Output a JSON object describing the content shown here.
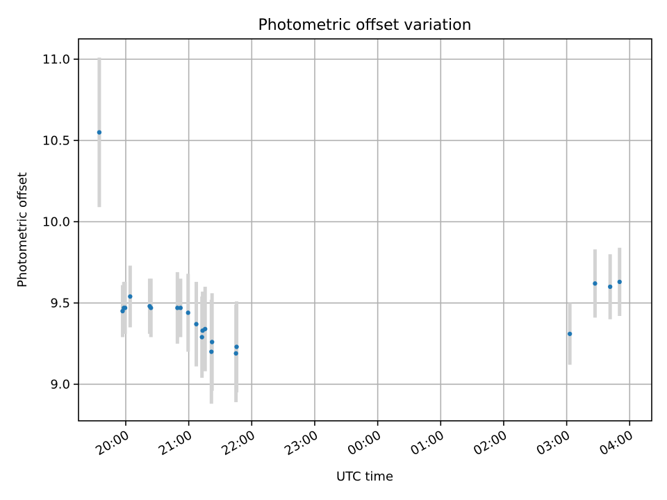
{
  "chart_data": {
    "type": "scatter",
    "title": "Photometric offset variation",
    "xlabel": "UTC time",
    "ylabel": "Photometric offset",
    "x_unit": "hours (UTC, continuing past midnight)",
    "xlim": [
      19.25,
      28.35
    ],
    "ylim": [
      8.775,
      11.125
    ],
    "x_ticks": [
      {
        "value": 20,
        "label": "20:00"
      },
      {
        "value": 21,
        "label": "21:00"
      },
      {
        "value": 22,
        "label": "22:00"
      },
      {
        "value": 23,
        "label": "23:00"
      },
      {
        "value": 24,
        "label": "00:00"
      },
      {
        "value": 25,
        "label": "01:00"
      },
      {
        "value": 26,
        "label": "02:00"
      },
      {
        "value": 27,
        "label": "03:00"
      },
      {
        "value": 28,
        "label": "04:00"
      }
    ],
    "y_ticks": [
      {
        "value": 9.0,
        "label": "9.0"
      },
      {
        "value": 9.5,
        "label": "9.5"
      },
      {
        "value": 10.0,
        "label": "10.0"
      },
      {
        "value": 10.5,
        "label": "10.5"
      },
      {
        "value": 11.0,
        "label": "11.0"
      }
    ],
    "grid": true,
    "colors": {
      "points": "#1f77b4",
      "errorbars": "#d3d3d3"
    },
    "points": [
      {
        "x": 19.58,
        "y": 10.55,
        "err": 0.46
      },
      {
        "x": 19.95,
        "y": 9.45,
        "err": 0.16
      },
      {
        "x": 19.97,
        "y": 9.47,
        "err": 0.16
      },
      {
        "x": 19.99,
        "y": 9.47,
        "err": 0.16
      },
      {
        "x": 20.07,
        "y": 9.54,
        "err": 0.19
      },
      {
        "x": 20.38,
        "y": 9.48,
        "err": 0.17
      },
      {
        "x": 20.4,
        "y": 9.47,
        "err": 0.18
      },
      {
        "x": 20.82,
        "y": 9.47,
        "err": 0.22
      },
      {
        "x": 20.87,
        "y": 9.47,
        "err": 0.18
      },
      {
        "x": 20.99,
        "y": 9.44,
        "err": 0.24
      },
      {
        "x": 21.12,
        "y": 9.37,
        "err": 0.26
      },
      {
        "x": 21.21,
        "y": 9.29,
        "err": 0.25
      },
      {
        "x": 21.22,
        "y": 9.33,
        "err": 0.24
      },
      {
        "x": 21.26,
        "y": 9.34,
        "err": 0.26
      },
      {
        "x": 21.36,
        "y": 9.2,
        "err": 0.32
      },
      {
        "x": 21.37,
        "y": 9.26,
        "err": 0.3
      },
      {
        "x": 21.75,
        "y": 9.19,
        "err": 0.3
      },
      {
        "x": 21.76,
        "y": 9.23,
        "err": 0.28
      },
      {
        "x": 27.05,
        "y": 9.31,
        "err": 0.19
      },
      {
        "x": 27.45,
        "y": 9.62,
        "err": 0.21
      },
      {
        "x": 27.69,
        "y": 9.6,
        "err": 0.2
      },
      {
        "x": 27.84,
        "y": 9.63,
        "err": 0.21
      }
    ]
  }
}
